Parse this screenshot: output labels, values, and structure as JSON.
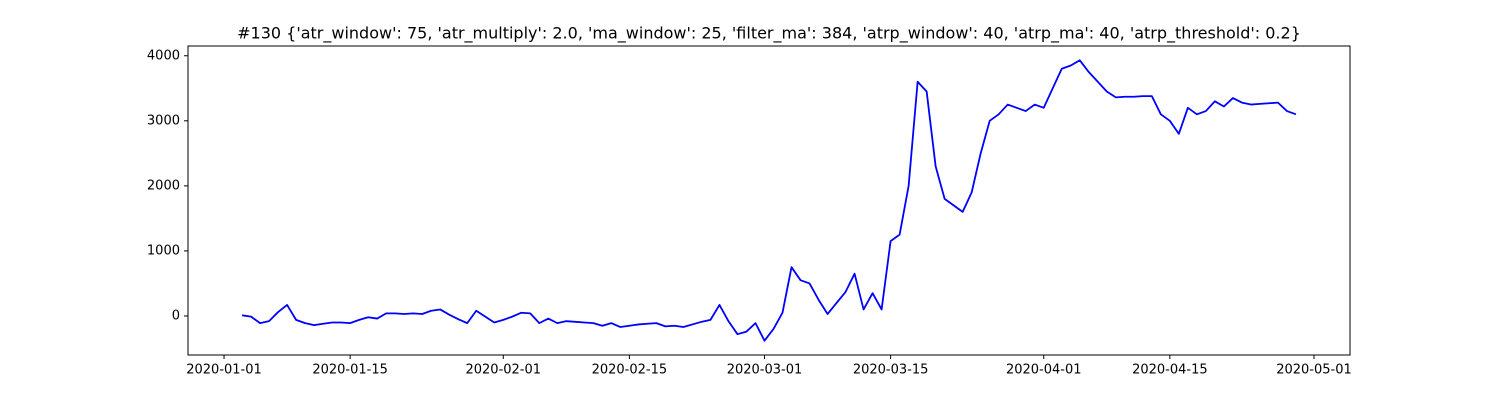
{
  "chart_data": {
    "type": "line",
    "title": "#130 {'atr_window': 75, 'atr_multiply': 2.0, 'ma_window': 25, 'filter_ma': 384, 'atrp_window': 40, 'atrp_ma': 40, 'atrp_threshold': 0.2}",
    "color": "#0000ff",
    "x": [
      "2020-01-03",
      "2020-01-04",
      "2020-01-05",
      "2020-01-06",
      "2020-01-07",
      "2020-01-08",
      "2020-01-09",
      "2020-01-10",
      "2020-01-11",
      "2020-01-12",
      "2020-01-13",
      "2020-01-14",
      "2020-01-15",
      "2020-01-16",
      "2020-01-17",
      "2020-01-18",
      "2020-01-19",
      "2020-01-20",
      "2020-01-21",
      "2020-01-22",
      "2020-01-23",
      "2020-01-24",
      "2020-01-25",
      "2020-01-26",
      "2020-01-27",
      "2020-01-28",
      "2020-01-29",
      "2020-01-30",
      "2020-01-31",
      "2020-02-01",
      "2020-02-02",
      "2020-02-03",
      "2020-02-04",
      "2020-02-05",
      "2020-02-06",
      "2020-02-07",
      "2020-02-08",
      "2020-02-09",
      "2020-02-10",
      "2020-02-11",
      "2020-02-12",
      "2020-02-13",
      "2020-02-14",
      "2020-02-15",
      "2020-02-16",
      "2020-02-17",
      "2020-02-18",
      "2020-02-19",
      "2020-02-20",
      "2020-02-21",
      "2020-02-22",
      "2020-02-23",
      "2020-02-24",
      "2020-02-25",
      "2020-02-26",
      "2020-02-27",
      "2020-02-28",
      "2020-02-29",
      "2020-03-01",
      "2020-03-02",
      "2020-03-03",
      "2020-03-04",
      "2020-03-05",
      "2020-03-06",
      "2020-03-07",
      "2020-03-08",
      "2020-03-09",
      "2020-03-10",
      "2020-03-11",
      "2020-03-12",
      "2020-03-13",
      "2020-03-14",
      "2020-03-15",
      "2020-03-16",
      "2020-03-17",
      "2020-03-18",
      "2020-03-19",
      "2020-03-20",
      "2020-03-21",
      "2020-03-22",
      "2020-03-23",
      "2020-03-24",
      "2020-03-25",
      "2020-03-26",
      "2020-03-27",
      "2020-03-28",
      "2020-03-29",
      "2020-03-30",
      "2020-03-31",
      "2020-04-01",
      "2020-04-02",
      "2020-04-03",
      "2020-04-04",
      "2020-04-05",
      "2020-04-06",
      "2020-04-07",
      "2020-04-08",
      "2020-04-09",
      "2020-04-10",
      "2020-04-11",
      "2020-04-12",
      "2020-04-13",
      "2020-04-14",
      "2020-04-15",
      "2020-04-16",
      "2020-04-17",
      "2020-04-18",
      "2020-04-19",
      "2020-04-20",
      "2020-04-21",
      "2020-04-22",
      "2020-04-23",
      "2020-04-24",
      "2020-04-25",
      "2020-04-26",
      "2020-04-27",
      "2020-04-28",
      "2020-04-29"
    ],
    "values": [
      10,
      -10,
      -110,
      -80,
      60,
      170,
      -60,
      -110,
      -140,
      -120,
      -100,
      -100,
      -110,
      -60,
      -20,
      -40,
      40,
      40,
      30,
      40,
      30,
      80,
      100,
      20,
      -50,
      -110,
      80,
      -10,
      -100,
      -60,
      -10,
      50,
      40,
      -110,
      -40,
      -110,
      -80,
      -90,
      -100,
      -110,
      -150,
      -110,
      -170,
      -150,
      -130,
      -120,
      -110,
      -160,
      -150,
      -170,
      -130,
      -90,
      -60,
      170,
      -80,
      -280,
      -240,
      -110,
      -380,
      -200,
      50,
      750,
      550,
      500,
      250,
      30,
      200,
      370,
      650,
      100,
      350,
      100,
      1150,
      1250,
      2000,
      3600,
      3450,
      2300,
      1800,
      1700,
      1600,
      1900,
      2500,
      3000,
      3100,
      3250,
      3200,
      3150,
      3250,
      3200,
      3500,
      3800,
      3850,
      3930,
      3750,
      3600,
      3450,
      3360,
      3370,
      3370,
      3380,
      3380,
      3100,
      3000,
      2800,
      3200,
      3100,
      3150,
      3300,
      3220,
      3350,
      3280,
      3250,
      3260,
      3270,
      3280,
      3150,
      3100
    ],
    "xlim": [
      "2019-12-28",
      "2020-05-05"
    ],
    "xticks": [
      "2020-01-01",
      "2020-01-15",
      "2020-02-01",
      "2020-02-15",
      "2020-03-01",
      "2020-03-15",
      "2020-04-01",
      "2020-04-15",
      "2020-05-01"
    ],
    "ylim": [
      -600,
      4150
    ],
    "yticks": [
      0,
      1000,
      2000,
      3000,
      4000
    ],
    "grid": false
  }
}
